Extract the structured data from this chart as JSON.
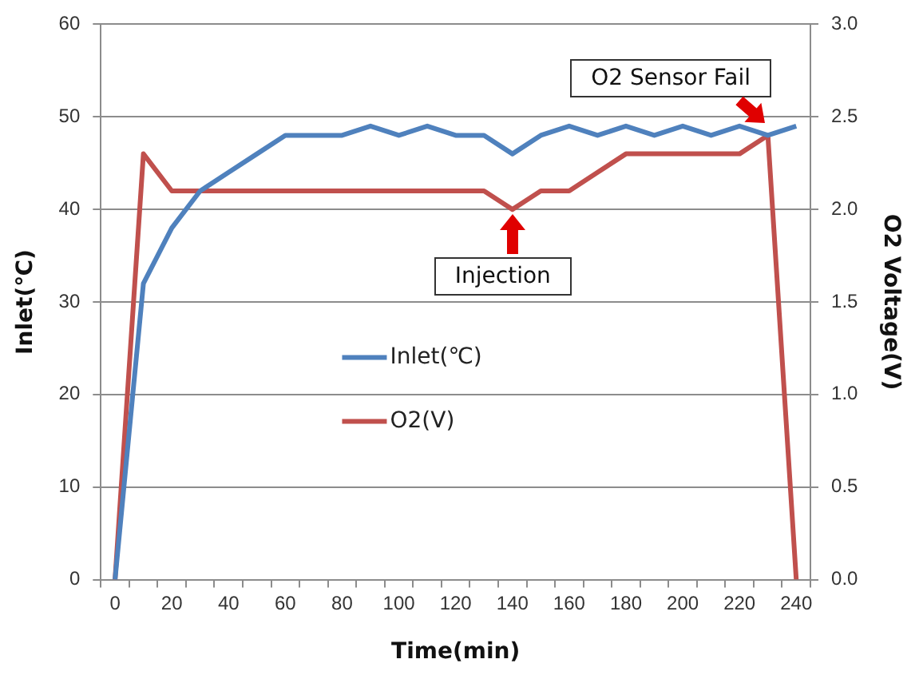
{
  "chart_data": {
    "type": "line",
    "xlabel": "Time(min)",
    "ylabel": "Inlet(℃)",
    "y2label": "O2 Voltage(V)",
    "categories": [
      "0",
      null,
      "20",
      null,
      "40",
      null,
      "60",
      null,
      "80",
      null,
      "100",
      null,
      "120",
      null,
      "140",
      null,
      "160",
      null,
      "180",
      null,
      "200",
      null,
      "220",
      null,
      "240"
    ],
    "series": [
      {
        "name": "Inlet(℃)",
        "color": "#4f81bd",
        "values": [
          0,
          32,
          38,
          42,
          44,
          46,
          48,
          48,
          48,
          49,
          48,
          49,
          48,
          48,
          46,
          48,
          49,
          48,
          49,
          48,
          49,
          48,
          49,
          48,
          49
        ]
      },
      {
        "name": "O2(V)",
        "color": "#c0504d",
        "axis": "y2",
        "values": [
          0,
          2.3,
          2.1,
          2.1,
          2.1,
          2.1,
          2.1,
          2.1,
          2.1,
          2.1,
          2.1,
          2.1,
          2.1,
          2.1,
          2.0,
          2.1,
          2.1,
          2.2,
          2.3,
          2.3,
          2.3,
          2.3,
          2.3,
          2.4,
          0
        ]
      }
    ],
    "ylim": [
      0,
      60
    ],
    "yticks": [
      0,
      10,
      20,
      30,
      40,
      50,
      60
    ],
    "y2lim": [
      0,
      3
    ],
    "y2ticks": [
      {
        "value": 0,
        "label": "0.0"
      },
      {
        "value": 0.5,
        "label": "0.5"
      },
      {
        "value": 1,
        "label": "1.0"
      },
      {
        "value": 1.5,
        "label": "1.5"
      },
      {
        "value": 2,
        "label": "2.0"
      },
      {
        "value": 2.5,
        "label": "2.5"
      },
      {
        "value": 3,
        "label": "3.0"
      }
    ],
    "grid": "y",
    "legend": "center",
    "marker": "none",
    "line_style": "solid",
    "annotations": [
      {
        "text": "Injection",
        "x": "140",
        "y": 40
      },
      {
        "text": "O2 Sensor Fail",
        "x": "220",
        "y": 49
      }
    ]
  }
}
